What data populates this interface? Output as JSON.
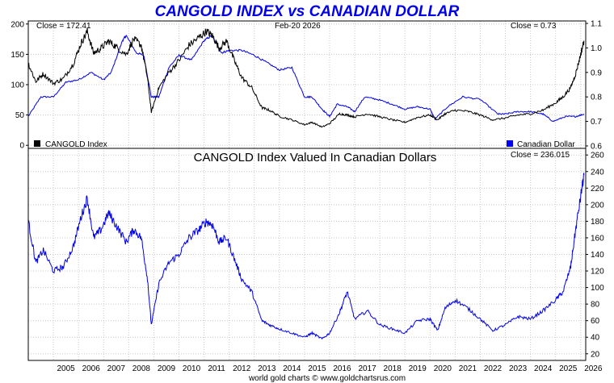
{
  "title": "CANGOLD INDEX vs CANADIAN DOLLAR",
  "colors": {
    "title": "#0000ee",
    "cangold": "#000000",
    "cad": "#0000ee",
    "ratio": "#0000ee",
    "frame": "#000000",
    "grid": "#c8c8c8"
  },
  "top_panel": {
    "close_left": "Close = 172.41",
    "date_label": "Feb-20  2026",
    "close_right": "Close = 0.73",
    "legend_left": "CANGOLD Index",
    "legend_right": "Canadian Dollar"
  },
  "bottom_panel": {
    "title": "CANGOLD Index Valued In Canadian Dollars",
    "close": "Close = 236.015"
  },
  "footer": "world gold charts © www.goldchartsrus.com",
  "chart_data": [
    {
      "type": "line",
      "panel": "top",
      "grid": true,
      "y_left_ticks": [
        "200",
        "150",
        "100",
        "50",
        "0"
      ],
      "y_left_range": [
        -5,
        205
      ],
      "y_right_ticks": [
        "1.1",
        "1.0",
        "0.9",
        "0.8",
        "0.7",
        "0.6"
      ],
      "y_right_range": [
        0.59,
        1.11
      ],
      "series": [
        {
          "name": "CANGOLD Index",
          "axis": "left",
          "x": [
            2004.0,
            2004.3,
            2004.6,
            2005.0,
            2005.4,
            2005.8,
            2006.1,
            2006.35,
            2006.6,
            2006.9,
            2007.2,
            2007.5,
            2007.9,
            2008.2,
            2008.5,
            2008.75,
            2008.9,
            2009.2,
            2009.6,
            2010.0,
            2010.4,
            2010.8,
            2011.1,
            2011.35,
            2011.6,
            2011.9,
            2012.2,
            2012.5,
            2012.9,
            2013.3,
            2013.6,
            2014.0,
            2014.5,
            2015.0,
            2015.3,
            2015.7,
            2016.0,
            2016.4,
            2016.7,
            2017.0,
            2017.5,
            2018.0,
            2018.5,
            2019.0,
            2019.5,
            2020.0,
            2020.3,
            2020.6,
            2021.0,
            2021.5,
            2022.0,
            2022.5,
            2023.0,
            2023.5,
            2024.0,
            2024.5,
            2025.0,
            2025.3,
            2025.6,
            2025.8,
            2026.0,
            2026.13
          ],
          "y": [
            135,
            105,
            118,
            102,
            110,
            135,
            168,
            188,
            152,
            160,
            172,
            162,
            150,
            175,
            165,
            110,
            55,
            95,
            120,
            140,
            165,
            178,
            188,
            180,
            160,
            172,
            140,
            112,
            95,
            62,
            58,
            48,
            42,
            34,
            38,
            30,
            36,
            52,
            50,
            47,
            52,
            47,
            42,
            38,
            46,
            50,
            42,
            52,
            58,
            56,
            50,
            42,
            45,
            50,
            52,
            58,
            70,
            80,
            95,
            118,
            150,
            172.41
          ]
        },
        {
          "name": "Canadian Dollar",
          "axis": "right",
          "x": [
            2004.0,
            2004.5,
            2005.0,
            2005.5,
            2006.0,
            2006.5,
            2007.0,
            2007.3,
            2007.75,
            2007.9,
            2008.3,
            2008.6,
            2008.9,
            2009.2,
            2009.6,
            2010.0,
            2010.5,
            2011.0,
            2011.3,
            2011.7,
            2012.0,
            2012.5,
            2013.0,
            2013.5,
            2014.0,
            2014.5,
            2015.0,
            2015.3,
            2015.7,
            2016.0,
            2016.3,
            2016.7,
            2017.0,
            2017.4,
            2017.9,
            2018.5,
            2019.0,
            2019.5,
            2020.0,
            2020.2,
            2020.7,
            2021.3,
            2022.0,
            2022.7,
            2023.0,
            2023.5,
            2024.0,
            2024.5,
            2024.9,
            2025.4,
            2025.8,
            2026.13
          ],
          "y": [
            0.72,
            0.8,
            0.8,
            0.86,
            0.87,
            0.9,
            0.87,
            0.9,
            1.03,
            1.05,
            0.98,
            0.97,
            0.8,
            0.8,
            0.92,
            0.97,
            0.95,
            1.03,
            1.05,
            0.98,
            0.99,
            0.99,
            0.97,
            0.94,
            0.91,
            0.92,
            0.8,
            0.8,
            0.75,
            0.72,
            0.77,
            0.76,
            0.74,
            0.8,
            0.79,
            0.77,
            0.75,
            0.76,
            0.75,
            0.71,
            0.76,
            0.8,
            0.79,
            0.73,
            0.73,
            0.74,
            0.74,
            0.73,
            0.7,
            0.72,
            0.72,
            0.73
          ]
        }
      ]
    },
    {
      "type": "line",
      "panel": "bottom",
      "grid": true,
      "y_ticks": [
        "260",
        "240",
        "220",
        "200",
        "180",
        "160",
        "140",
        "120",
        "100",
        "80",
        "60",
        "40",
        "20"
      ],
      "y_range": [
        12,
        268
      ],
      "series": [
        {
          "x": [
            2004.0,
            2004.3,
            2004.6,
            2005.0,
            2005.4,
            2005.8,
            2006.1,
            2006.35,
            2006.6,
            2006.9,
            2007.2,
            2007.5,
            2007.9,
            2008.2,
            2008.5,
            2008.75,
            2008.9,
            2009.2,
            2009.6,
            2010.0,
            2010.4,
            2010.8,
            2011.1,
            2011.35,
            2011.6,
            2011.9,
            2012.2,
            2012.5,
            2012.9,
            2013.3,
            2013.6,
            2014.0,
            2014.5,
            2015.0,
            2015.3,
            2015.7,
            2016.0,
            2016.4,
            2016.7,
            2017.0,
            2017.5,
            2018.0,
            2018.5,
            2019.0,
            2019.5,
            2020.0,
            2020.3,
            2020.6,
            2021.0,
            2021.5,
            2022.0,
            2022.5,
            2023.0,
            2023.5,
            2024.0,
            2024.5,
            2025.0,
            2025.3,
            2025.6,
            2025.8,
            2026.0,
            2026.13
          ],
          "y": [
            180,
            130,
            145,
            120,
            125,
            150,
            185,
            208,
            160,
            170,
            190,
            175,
            155,
            170,
            160,
            110,
            55,
            105,
            130,
            140,
            160,
            170,
            180,
            175,
            155,
            160,
            135,
            110,
            95,
            60,
            55,
            50,
            45,
            40,
            45,
            38,
            45,
            70,
            95,
            62,
            72,
            55,
            50,
            45,
            60,
            62,
            48,
            75,
            85,
            75,
            62,
            48,
            55,
            65,
            62,
            72,
            85,
            95,
            125,
            170,
            210,
            236.015
          ]
        }
      ]
    }
  ],
  "x_ticks": [
    "2005",
    "2006",
    "2007",
    "2008",
    "2009",
    "2010",
    "2011",
    "2012",
    "2013",
    "2014",
    "2015",
    "2016",
    "2017",
    "2018",
    "2019",
    "2020",
    "2021",
    "2022",
    "2023",
    "2024",
    "2025",
    "2026"
  ]
}
